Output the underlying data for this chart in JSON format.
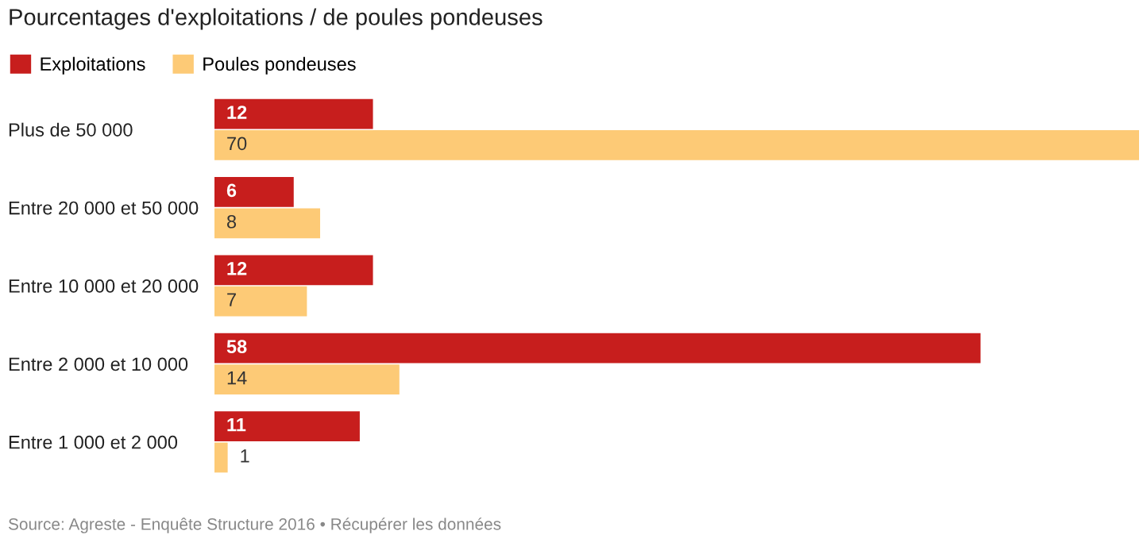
{
  "chart_data": {
    "type": "bar",
    "orientation": "horizontal",
    "title": "Pourcentages d'exploitations / de poules pondeuses",
    "categories": [
      "Plus de 50 000",
      "Entre 20 000 et 50 000",
      "Entre 10 000 et 20 000",
      "Entre 2 000 et 10 000",
      "Entre 1 000 et 2 000"
    ],
    "series": [
      {
        "name": "Exploitations",
        "color": "#c71e1d",
        "values": [
          12,
          6,
          12,
          58,
          11
        ]
      },
      {
        "name": "Poules pondeuses",
        "color": "#fdca76",
        "values": [
          70,
          8,
          7,
          14,
          1
        ]
      }
    ],
    "data_labels": true,
    "legend": "top left",
    "grid": false,
    "annotations": [
      "Source: Agreste - Enquête Structure 2016 • Récupérer les données"
    ]
  }
}
